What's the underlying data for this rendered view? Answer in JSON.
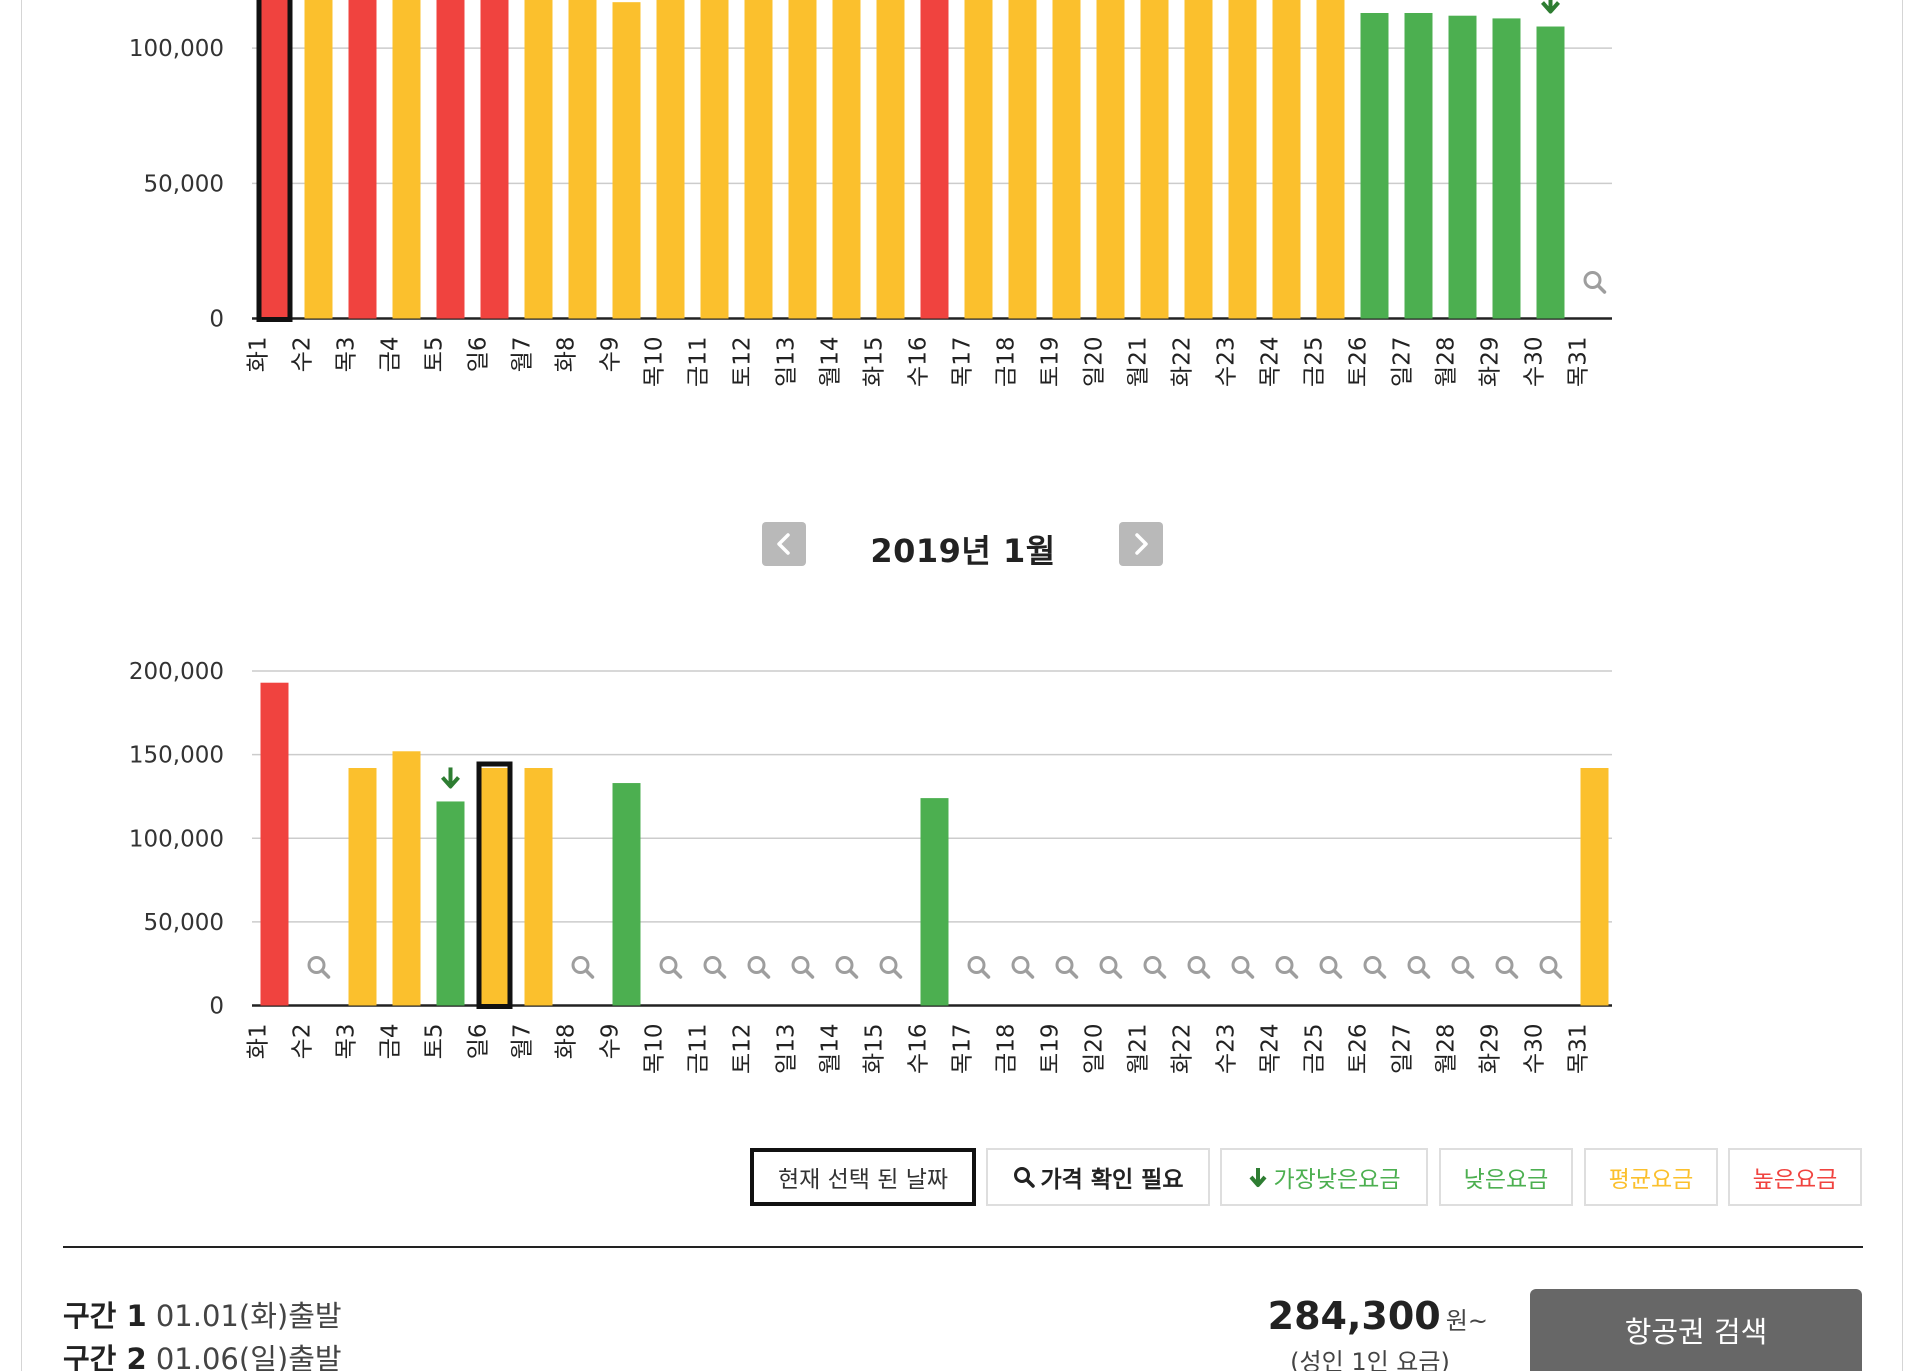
{
  "month_nav": {
    "title": "2019년 1월",
    "prev_icon": "chevron-left-icon",
    "next_icon": "chevron-right-icon"
  },
  "colors": {
    "high": "#f0433f",
    "average": "#fbc02d",
    "low": "#4caf50",
    "lowest_marker": "#2e7d32",
    "grid": "#cccccc",
    "search_icon": "#9e9e9e",
    "selected_border": "#111111"
  },
  "chart_data": [
    {
      "type": "bar",
      "name": "previous-month",
      "ylim": [
        0,
        140000
      ],
      "yticks": [
        0,
        50000,
        100000
      ],
      "ytick_labels": [
        "0",
        "50,000",
        "100,000"
      ],
      "grid": true,
      "categories": [
        "화1",
        "수2",
        "목3",
        "금4",
        "토5",
        "일6",
        "월7",
        "화8",
        "수9",
        "목10",
        "금11",
        "토12",
        "일13",
        "월14",
        "화15",
        "수16",
        "목17",
        "금18",
        "토19",
        "일20",
        "월21",
        "화22",
        "수23",
        "목24",
        "금25",
        "토26",
        "일27",
        "월28",
        "화29",
        "수30",
        "목31"
      ],
      "values": [
        140000,
        130000,
        138000,
        133000,
        134000,
        134000,
        127000,
        118000,
        117000,
        125000,
        133000,
        129000,
        130000,
        129000,
        118000,
        142000,
        123000,
        128000,
        125000,
        123000,
        119000,
        120000,
        118000,
        127000,
        125000,
        113000,
        113000,
        112000,
        111000,
        108000,
        null
      ],
      "levels": [
        "high",
        "average",
        "high",
        "average",
        "high",
        "high",
        "average",
        "average",
        "average",
        "average",
        "average",
        "average",
        "average",
        "average",
        "average",
        "high",
        "average",
        "average",
        "average",
        "average",
        "average",
        "average",
        "average",
        "average",
        "average",
        "low",
        "low",
        "low",
        "low",
        "low",
        "unknown"
      ],
      "lowest_index": 29,
      "selected_index": 0
    },
    {
      "type": "bar",
      "name": "2019년 1월",
      "ylim": [
        0,
        200000
      ],
      "yticks": [
        0,
        50000,
        100000,
        150000,
        200000
      ],
      "ytick_labels": [
        "0",
        "50,000",
        "100,000",
        "150,000",
        "200,000"
      ],
      "grid": true,
      "categories": [
        "화1",
        "수2",
        "목3",
        "금4",
        "토5",
        "일6",
        "월7",
        "화8",
        "수9",
        "목10",
        "금11",
        "토12",
        "일13",
        "월14",
        "화15",
        "수16",
        "목17",
        "금18",
        "토19",
        "일20",
        "월21",
        "화22",
        "수23",
        "목24",
        "금25",
        "토26",
        "일27",
        "월28",
        "화29",
        "수30",
        "목31"
      ],
      "values": [
        193000,
        null,
        142000,
        152000,
        122000,
        142000,
        142000,
        null,
        133000,
        null,
        null,
        null,
        null,
        null,
        null,
        124000,
        null,
        null,
        null,
        null,
        null,
        null,
        null,
        null,
        null,
        null,
        null,
        null,
        null,
        null,
        142000
      ],
      "levels": [
        "high",
        "unknown",
        "average",
        "average",
        "low",
        "average",
        "average",
        "unknown",
        "low",
        "unknown",
        "unknown",
        "unknown",
        "unknown",
        "unknown",
        "unknown",
        "low",
        "unknown",
        "unknown",
        "unknown",
        "unknown",
        "unknown",
        "unknown",
        "unknown",
        "unknown",
        "unknown",
        "unknown",
        "unknown",
        "unknown",
        "unknown",
        "unknown",
        "average"
      ],
      "lowest_index": 4,
      "selected_index": 5
    }
  ],
  "legend": {
    "selected": "현재 선택 된 날짜",
    "check_price": "가격 확인 필요",
    "lowest": "가장낮은요금",
    "low": "낮은요금",
    "average": "평균요금",
    "high": "높은요금"
  },
  "summary": {
    "segment1_label": "구간 1",
    "segment1_text": "01.01(화)출발",
    "segment2_label": "구간 2",
    "segment2_text": "01.06(일)출발",
    "price": "284,300",
    "price_unit": "원~",
    "price_note": "(성인 1인 요금)",
    "search_button": "항공권 검색"
  }
}
